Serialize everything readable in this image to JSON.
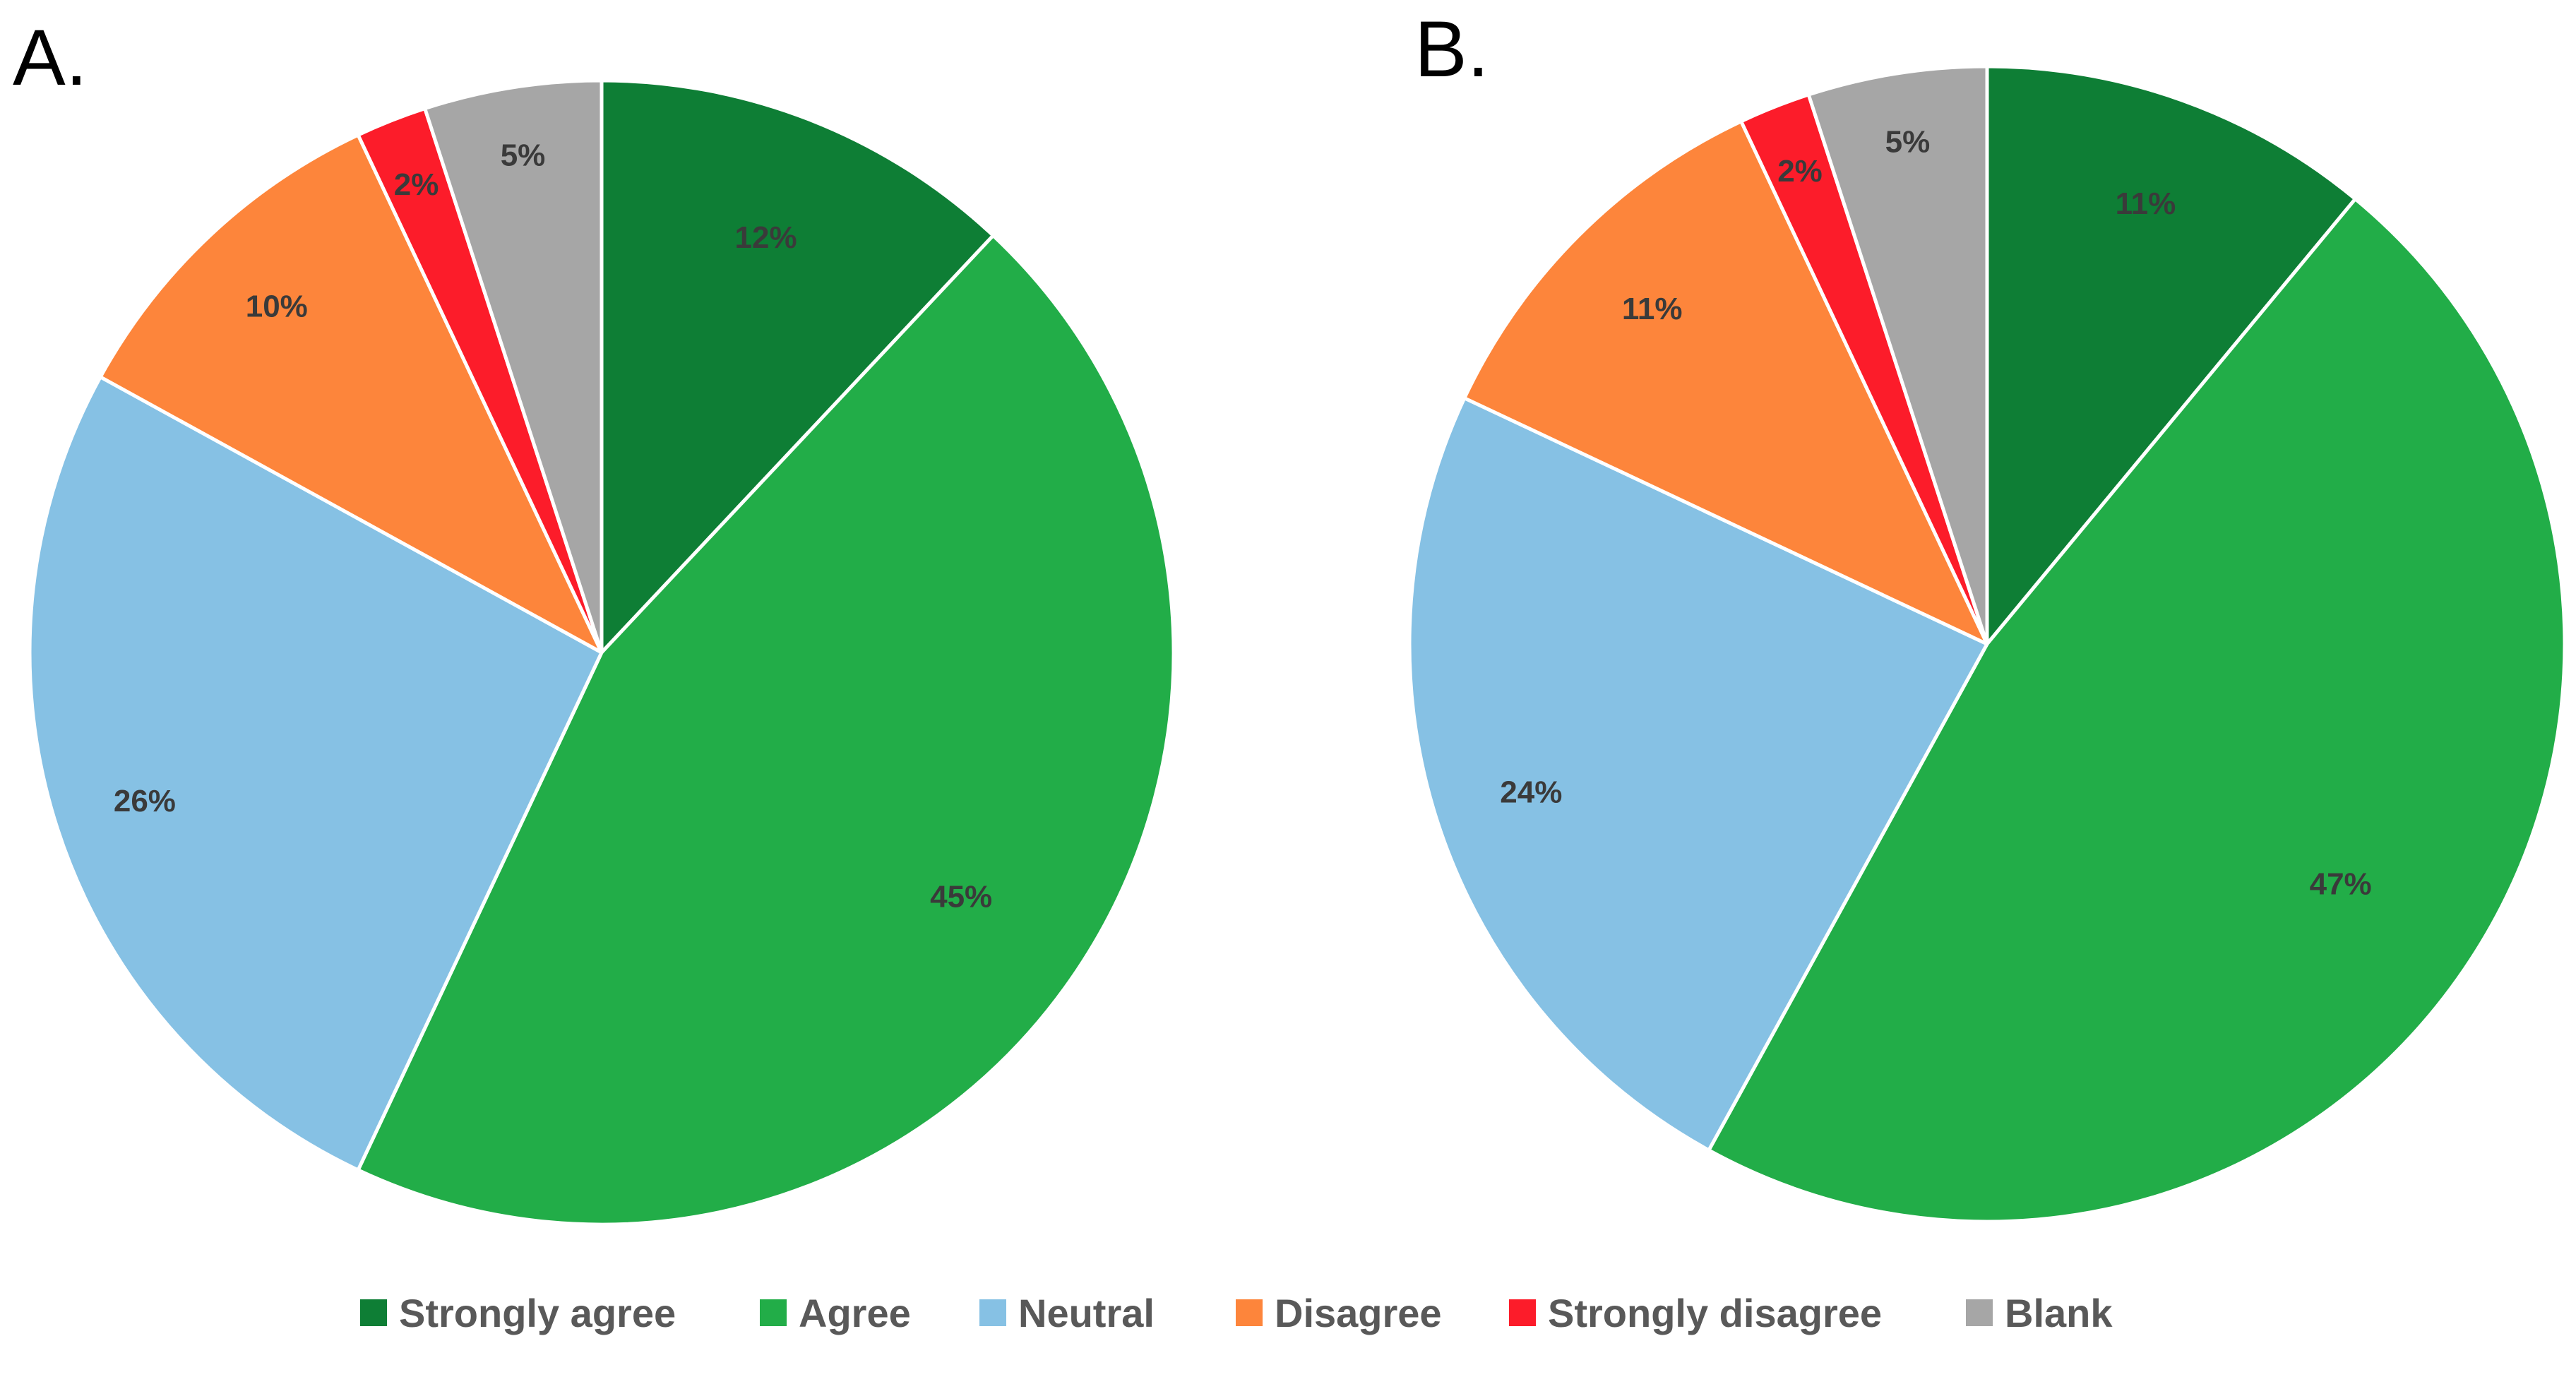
{
  "chart_data": [
    {
      "type": "pie",
      "panel_label": "A.",
      "title": "",
      "start_angle_deg": 0,
      "direction": "clockwise",
      "categories": [
        "Strongly agree",
        "Agree",
        "Neutral",
        "Disagree",
        "Strongly disagree",
        "Blank"
      ],
      "values": [
        12,
        45,
        26,
        10,
        2,
        5
      ],
      "labels": [
        "12%",
        "45%",
        "26%",
        "10%",
        "2%",
        "5%"
      ]
    },
    {
      "type": "pie",
      "panel_label": "B.",
      "title": "",
      "start_angle_deg": 0,
      "direction": "clockwise",
      "categories": [
        "Strongly agree",
        "Agree",
        "Neutral",
        "Disagree",
        "Strongly disagree",
        "Blank"
      ],
      "values": [
        11,
        47,
        24,
        11,
        2,
        5
      ],
      "labels": [
        "11%",
        "47%",
        "24%",
        "11%",
        "2%",
        "5%"
      ]
    }
  ],
  "legend": {
    "placement": "bottom-center",
    "items": [
      {
        "label": "Strongly agree",
        "color": "#0e7e35"
      },
      {
        "label": "Agree",
        "color": "#22ad48"
      },
      {
        "label": "Neutral",
        "color": "#86c1e4"
      },
      {
        "label": "Disagree",
        "color": "#fd853b"
      },
      {
        "label": "Strongly disagree",
        "color": "#fc1c2a"
      },
      {
        "label": "Blank",
        "color": "#a6a6a6"
      }
    ]
  }
}
